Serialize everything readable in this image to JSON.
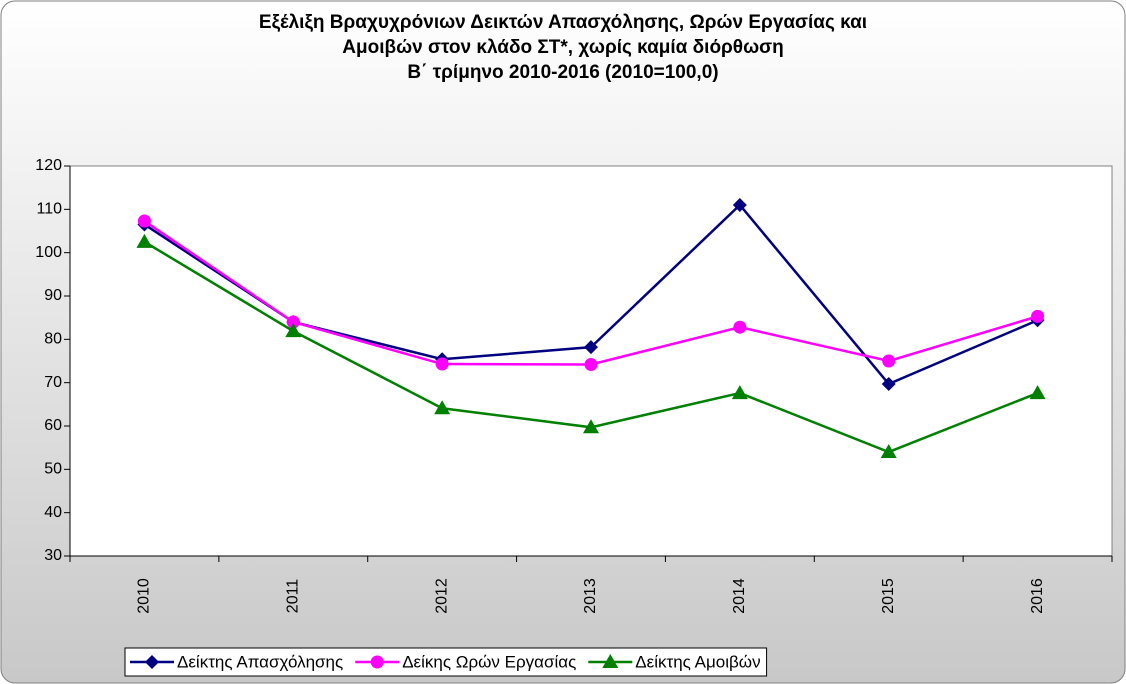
{
  "chart_data": {
    "type": "line",
    "title": [
      "Εξέλιξη Βραχυχρόνιων Δεικτών Απασχόλησης, Ωρών Εργασίας και",
      "Αμοιβών στον κλάδο ΣΤ*, χωρίς καμία διόρθωση",
      "Β΄ τρίμηνο 2010-2016 (2010=100,0)"
    ],
    "categories": [
      "2010",
      "2011",
      "2012",
      "2013",
      "2014",
      "2015",
      "2016"
    ],
    "series": [
      {
        "name": "Δείκτης Απασχόλησης",
        "color": "#000080",
        "marker": "diamond",
        "values": [
          106.5,
          84,
          75.4,
          78.2,
          111,
          69.7,
          84.4
        ]
      },
      {
        "name": "Δείκης Ωρών Εργασίας",
        "color": "#ff00ff",
        "marker": "circle",
        "values": [
          107.3,
          84,
          74.3,
          74.2,
          82.8,
          75,
          85.3
        ]
      },
      {
        "name": "Δείκτης Αμοιβών",
        "color": "#008000",
        "marker": "triangle",
        "values": [
          102.5,
          81.9,
          64.1,
          59.7,
          67.6,
          54,
          67.6
        ]
      }
    ],
    "ylim": [
      30,
      120
    ],
    "yticks": [
      30,
      40,
      50,
      60,
      70,
      80,
      90,
      100,
      110,
      120
    ],
    "grid": false,
    "legend": "bottom"
  }
}
